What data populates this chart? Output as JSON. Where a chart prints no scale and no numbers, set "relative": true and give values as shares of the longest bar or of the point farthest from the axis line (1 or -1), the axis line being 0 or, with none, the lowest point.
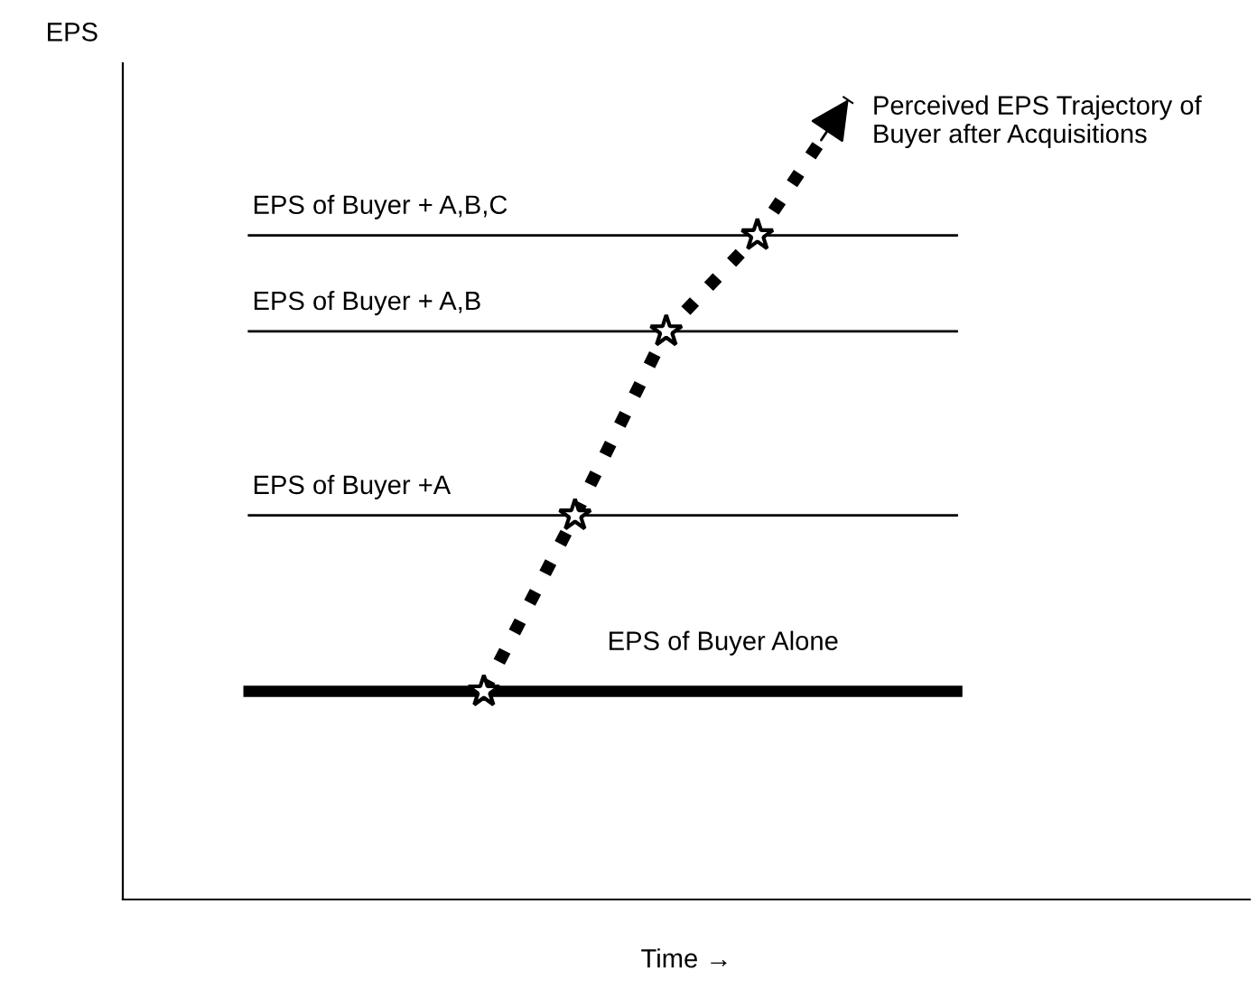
{
  "chart_data": {
    "type": "line",
    "relative": true,
    "xlabel": "Time →",
    "categories": [
      null,
      null,
      null,
      null,
      null
    ],
    "series": [
      {
        "color": "#000000",
        "values": [
          0.26,
          0.48,
          0.71,
          0.83,
          1.0
        ],
        "marker": "star",
        "line_style": "dotted"
      }
    ],
    "ref_lines": [
      {
        "axis": "y",
        "value": 0.26,
        "label": "EPS of Buyer Alone",
        "color": "#000000"
      },
      {
        "axis": "y",
        "value": 0.48,
        "label": "EPS of Buyer +A",
        "color": "#000000"
      },
      {
        "axis": "y",
        "value": 0.71,
        "label": "EPS of Buyer + A,B",
        "color": "#000000"
      },
      {
        "axis": "y",
        "value": 0.83,
        "label": "EPS of Buyer + A,B,C",
        "color": "#000000"
      }
    ],
    "annotations": [
      "Perceived EPS Trajectory of\nBuyer after Acquisitions",
      "EPS"
    ],
    "grid": false,
    "legend": false
  }
}
